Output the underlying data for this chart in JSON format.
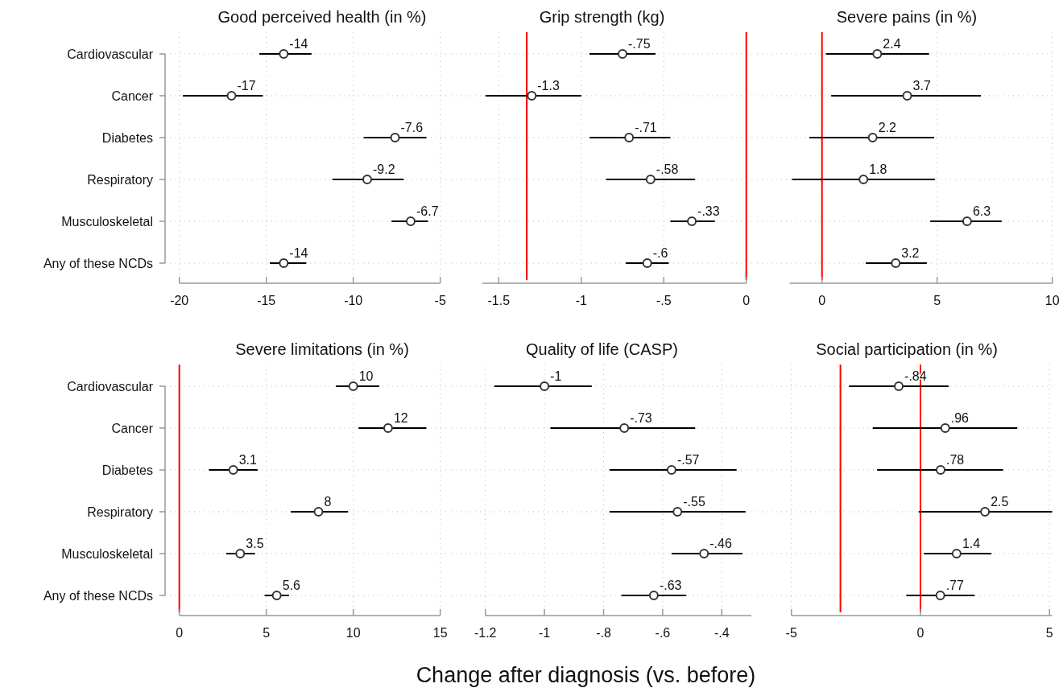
{
  "chart_data": [
    {
      "type": "scatter",
      "orientation": "horizontal",
      "title": "Good perceived health (in %)",
      "categories": [
        "Cardiovascular",
        "Cancer",
        "Diabetes",
        "Respiratory",
        "Musculoskeletal",
        "Any of these NCDs"
      ],
      "values": [
        -14,
        -17,
        -7.6,
        -9.2,
        -6.7,
        -14
      ],
      "value_labels": [
        "-14",
        "-17",
        "-7.6",
        "-9.2",
        "-6.7",
        "-14"
      ],
      "errors": [
        [
          -15.4,
          -12.4
        ],
        [
          -19.8,
          -15.2
        ],
        [
          -9.4,
          -5.8
        ],
        [
          -11.2,
          -7.1
        ],
        [
          -7.8,
          -5.7
        ],
        [
          -14.8,
          -12.7
        ]
      ],
      "color": "#333333",
      "marker": "circle",
      "xlim": [
        -20,
        -5
      ],
      "xticks": [
        -20,
        -15,
        -10,
        -5
      ],
      "grid": true
    },
    {
      "type": "scatter",
      "orientation": "horizontal",
      "title": "Grip strength (kg)",
      "categories": [
        null,
        null,
        null,
        null,
        null,
        null
      ],
      "values": [
        -0.75,
        -1.3,
        -0.71,
        -0.58,
        -0.33,
        -0.6
      ],
      "value_labels": [
        "-.75",
        "-1.3",
        "-.71",
        "-.58",
        "-.33",
        "-.6"
      ],
      "errors": [
        [
          -0.95,
          -0.55
        ],
        [
          -1.58,
          -1.0
        ],
        [
          -0.95,
          -0.46
        ],
        [
          -0.85,
          -0.31
        ],
        [
          -0.46,
          -0.19
        ],
        [
          -0.73,
          -0.47
        ]
      ],
      "color": "#333333",
      "marker": "circle",
      "xlim": [
        -1.6,
        0
      ],
      "xticks": [
        -1.5,
        -1,
        {
          "value": -0.5,
          "label": "-.5"
        },
        0
      ],
      "grid": true,
      "tick_labels": "x",
      "ref_lines": [
        {
          "axis": "x",
          "value": -1.33,
          "color": "#ff0000"
        },
        {
          "axis": "x",
          "value": 0,
          "color": "#ff0000"
        }
      ]
    },
    {
      "type": "scatter",
      "orientation": "horizontal",
      "title": "Severe pains (in %)",
      "categories": [
        null,
        null,
        null,
        null,
        null,
        null
      ],
      "values": [
        2.4,
        3.7,
        2.2,
        1.8,
        6.3,
        3.2
      ],
      "value_labels": [
        "2.4",
        "3.7",
        "2.2",
        "1.8",
        "6.3",
        "3.2"
      ],
      "errors": [
        [
          0.17,
          4.65
        ],
        [
          0.4,
          6.9
        ],
        [
          -0.55,
          4.87
        ],
        [
          -1.3,
          4.9
        ],
        [
          4.7,
          7.8
        ],
        [
          1.9,
          4.55
        ]
      ],
      "color": "#333333",
      "marker": "circle",
      "xlim": [
        -1.4,
        10
      ],
      "xticks": [
        0,
        5,
        10
      ],
      "grid": true,
      "tick_labels": "x",
      "ref_lines": [
        {
          "axis": "x",
          "value": 0,
          "color": "#ff0000"
        }
      ]
    },
    {
      "type": "scatter",
      "orientation": "horizontal",
      "title": "Severe limitations (in %)",
      "categories": [
        "Cardiovascular",
        "Cancer",
        "Diabetes",
        "Respiratory",
        "Musculoskeletal",
        "Any of these NCDs"
      ],
      "values": [
        10,
        12,
        3.1,
        8,
        3.5,
        5.6
      ],
      "value_labels": [
        "10",
        "12",
        "3.1",
        "8",
        "3.5",
        "5.6"
      ],
      "errors": [
        [
          9.0,
          11.5
        ],
        [
          10.3,
          14.2
        ],
        [
          1.7,
          4.5
        ],
        [
          6.4,
          9.7
        ],
        [
          2.7,
          4.35
        ],
        [
          4.9,
          6.3
        ]
      ],
      "color": "#333333",
      "marker": "circle",
      "xlim": [
        0,
        15
      ],
      "xticks": [
        0,
        5,
        10,
        15
      ],
      "grid": true,
      "ref_lines": [
        {
          "axis": "x",
          "value": 0,
          "color": "#ff0000"
        }
      ]
    },
    {
      "type": "scatter",
      "orientation": "horizontal",
      "title": "Quality of life (CASP)",
      "xlabel": "Change after diagnosis (vs. before)",
      "categories": [
        null,
        null,
        null,
        null,
        null,
        null
      ],
      "values": [
        -1,
        -0.73,
        -0.57,
        -0.55,
        -0.46,
        -0.63
      ],
      "value_labels": [
        "-1",
        "-.73",
        "-.57",
        "-.55",
        "-.46",
        "-.63"
      ],
      "errors": [
        [
          -1.17,
          -0.84
        ],
        [
          -0.98,
          -0.49
        ],
        [
          -0.78,
          -0.35
        ],
        [
          -0.78,
          -0.32
        ],
        [
          -0.57,
          -0.33
        ],
        [
          -0.74,
          -0.52
        ]
      ],
      "color": "#333333",
      "marker": "circle",
      "xlim": [
        -1.2,
        -0.3
      ],
      "xticks": [
        -1.2,
        -1,
        {
          "value": -0.8,
          "label": "-.8"
        },
        {
          "value": -0.6,
          "label": "-.6"
        },
        {
          "value": -0.4,
          "label": "-.4"
        }
      ],
      "grid": true,
      "tick_labels": "x"
    },
    {
      "type": "scatter",
      "orientation": "horizontal",
      "title": "Social participation (in %)",
      "categories": [
        null,
        null,
        null,
        null,
        null,
        null
      ],
      "values": [
        -0.84,
        0.96,
        0.78,
        2.5,
        1.4,
        0.77
      ],
      "value_labels": [
        "-.84",
        ".96",
        ".78",
        "2.5",
        "1.4",
        ".77"
      ],
      "errors": [
        [
          -2.77,
          1.09
        ],
        [
          -1.85,
          3.75
        ],
        [
          -1.68,
          3.2
        ],
        [
          -0.07,
          5.1
        ],
        [
          0.13,
          2.75
        ],
        [
          -0.55,
          2.1
        ]
      ],
      "color": "#333333",
      "marker": "circle",
      "xlim": [
        -5,
        5.1
      ],
      "xticks": [
        -5,
        0,
        5
      ],
      "grid": true,
      "tick_labels": "x",
      "ref_lines": [
        {
          "axis": "x",
          "value": -3.1,
          "color": "#ff0000"
        },
        {
          "axis": "x",
          "value": 0,
          "color": "#ff0000"
        }
      ]
    }
  ]
}
